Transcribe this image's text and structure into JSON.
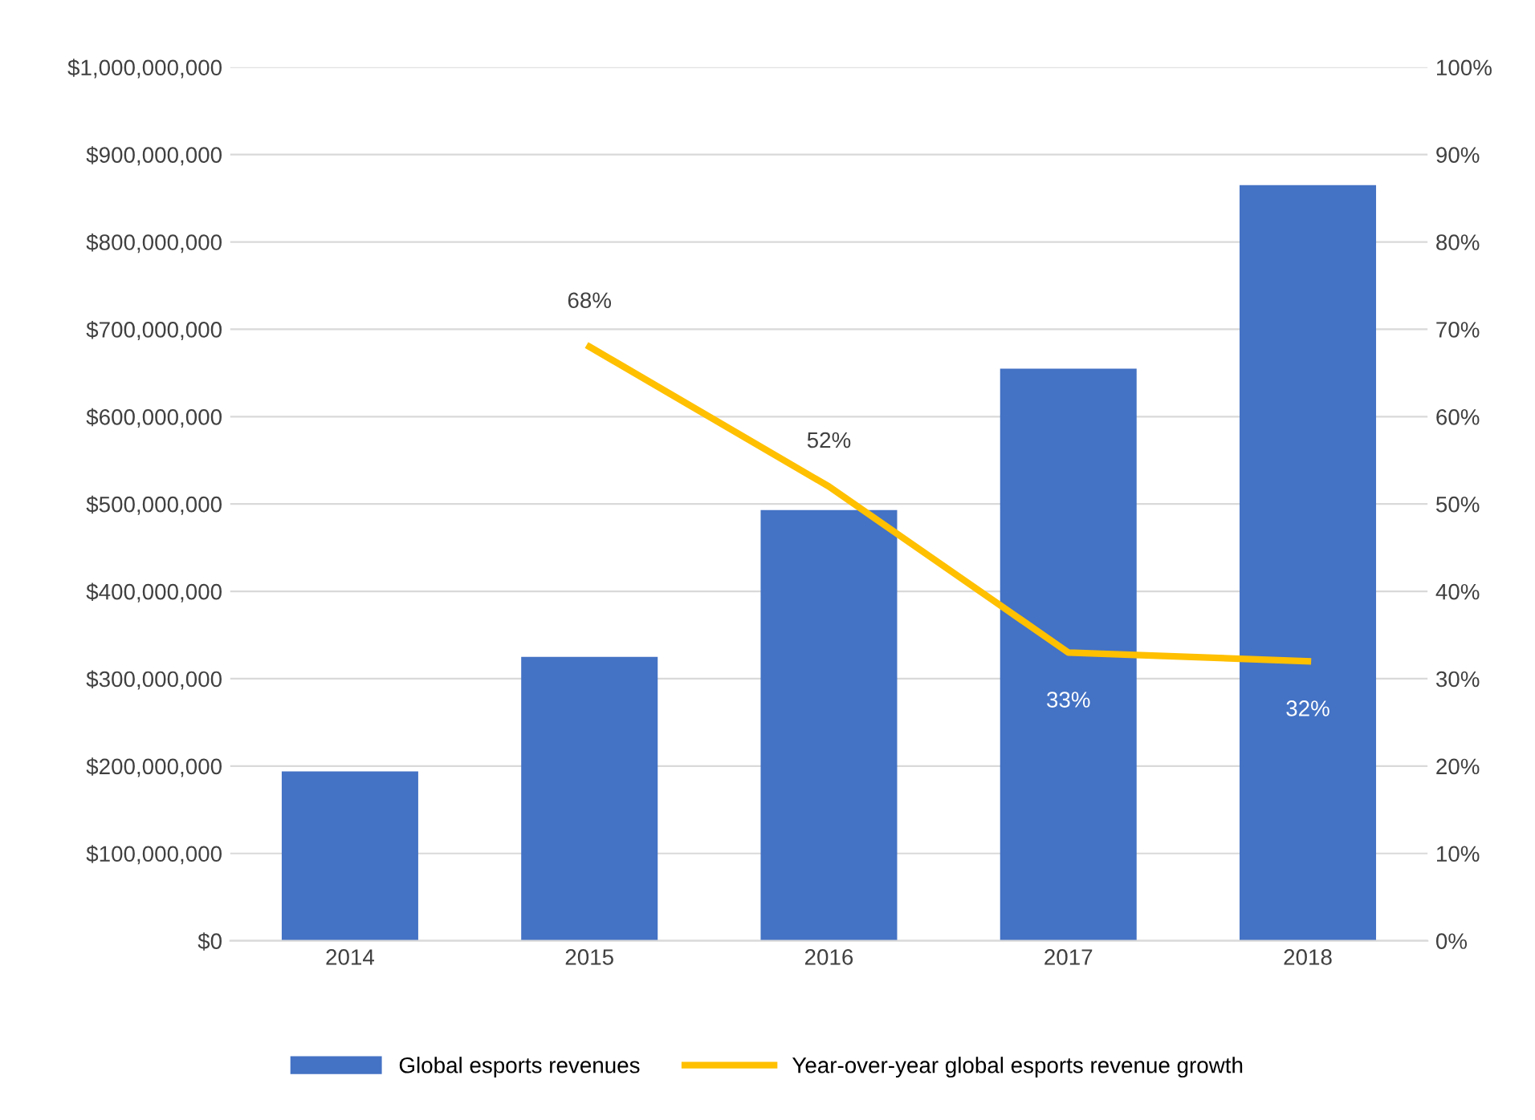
{
  "chart_data": {
    "type": "bar",
    "categories": [
      "2014",
      "2015",
      "2016",
      "2017",
      "2018"
    ],
    "series": [
      {
        "name": "Global esports revenues",
        "color": "#4472c4",
        "values": [
          194000000,
          325000000,
          493000000,
          655000000,
          865000000
        ]
      },
      {
        "name": "Year-over-year global esports revenue growth",
        "type": "line",
        "axis": "y2",
        "color": "#ffc000",
        "values": [
          null,
          68,
          52,
          33,
          32
        ],
        "value_labels": [
          null,
          "68%",
          "52%",
          "33%",
          "32%"
        ]
      }
    ],
    "ylim": [
      0,
      1000000000
    ],
    "yticks": [
      {
        "value": 0,
        "label": "$0"
      },
      {
        "value": 100000000,
        "label": "$100,000,000"
      },
      {
        "value": 200000000,
        "label": "$200,000,000"
      },
      {
        "value": 300000000,
        "label": "$300,000,000"
      },
      {
        "value": 400000000,
        "label": "$400,000,000"
      },
      {
        "value": 500000000,
        "label": "$500,000,000"
      },
      {
        "value": 600000000,
        "label": "$600,000,000"
      },
      {
        "value": 700000000,
        "label": "$700,000,000"
      },
      {
        "value": 800000000,
        "label": "$800,000,000"
      },
      {
        "value": 900000000,
        "label": "$900,000,000"
      },
      {
        "value": 1000000000,
        "label": "$1,000,000,000"
      }
    ],
    "y2lim": [
      0,
      100
    ],
    "y2ticks": [
      {
        "value": 0,
        "label": "0%"
      },
      {
        "value": 10,
        "label": "10%"
      },
      {
        "value": 20,
        "label": "20%"
      },
      {
        "value": 30,
        "label": "30%"
      },
      {
        "value": 40,
        "label": "40%"
      },
      {
        "value": 50,
        "label": "50%"
      },
      {
        "value": 60,
        "label": "60%"
      },
      {
        "value": 70,
        "label": "70%"
      },
      {
        "value": 80,
        "label": "80%"
      },
      {
        "value": 90,
        "label": "90%"
      },
      {
        "value": 100,
        "label": "100%"
      }
    ],
    "grid": "y",
    "legend": "bottom",
    "marker": "none",
    "line_style": "solid"
  }
}
